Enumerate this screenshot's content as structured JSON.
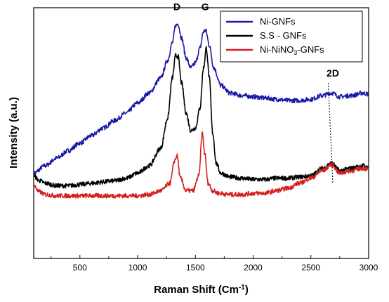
{
  "chart_data": {
    "type": "line",
    "xlabel": "Raman Shift (Cm",
    "xlabel_sup": "-1",
    "xlabel_close": ")",
    "ylabel": "Intensity (a.u.)",
    "xlim": [
      100,
      3000
    ],
    "ylim": [
      0,
      1
    ],
    "x_ticks": [
      500,
      1000,
      1500,
      2000,
      2500,
      3000
    ],
    "y_ticks_labeled": false,
    "grid": false,
    "legend_position": "top-right",
    "series": [
      {
        "name": "Ni-GNFs",
        "color": "#1a1aa6",
        "points": [
          [
            100,
            0.34
          ],
          [
            200,
            0.37
          ],
          [
            300,
            0.4
          ],
          [
            400,
            0.43
          ],
          [
            500,
            0.46
          ],
          [
            600,
            0.49
          ],
          [
            700,
            0.52
          ],
          [
            800,
            0.55
          ],
          [
            900,
            0.58
          ],
          [
            1000,
            0.62
          ],
          [
            1100,
            0.66
          ],
          [
            1200,
            0.72
          ],
          [
            1260,
            0.79
          ],
          [
            1300,
            0.86
          ],
          [
            1330,
            0.93
          ],
          [
            1350,
            0.935
          ],
          [
            1380,
            0.88
          ],
          [
            1420,
            0.8
          ],
          [
            1460,
            0.76
          ],
          [
            1500,
            0.78
          ],
          [
            1540,
            0.84
          ],
          [
            1570,
            0.905
          ],
          [
            1590,
            0.91
          ],
          [
            1620,
            0.85
          ],
          [
            1660,
            0.76
          ],
          [
            1720,
            0.69
          ],
          [
            1800,
            0.66
          ],
          [
            1900,
            0.65
          ],
          [
            2000,
            0.645
          ],
          [
            2100,
            0.64
          ],
          [
            2200,
            0.635
          ],
          [
            2300,
            0.63
          ],
          [
            2400,
            0.63
          ],
          [
            2500,
            0.635
          ],
          [
            2600,
            0.65
          ],
          [
            2680,
            0.66
          ],
          [
            2750,
            0.645
          ],
          [
            2850,
            0.65
          ],
          [
            2950,
            0.66
          ],
          [
            3000,
            0.655
          ]
        ]
      },
      {
        "name": "S.S - GNFs",
        "color": "#000000",
        "points": [
          [
            100,
            0.33
          ],
          [
            150,
            0.31
          ],
          [
            200,
            0.3
          ],
          [
            300,
            0.29
          ],
          [
            400,
            0.29
          ],
          [
            500,
            0.295
          ],
          [
            600,
            0.3
          ],
          [
            700,
            0.305
          ],
          [
            800,
            0.31
          ],
          [
            900,
            0.32
          ],
          [
            1000,
            0.34
          ],
          [
            1100,
            0.37
          ],
          [
            1200,
            0.44
          ],
          [
            1260,
            0.56
          ],
          [
            1300,
            0.72
          ],
          [
            1330,
            0.81
          ],
          [
            1350,
            0.805
          ],
          [
            1380,
            0.7
          ],
          [
            1420,
            0.58
          ],
          [
            1460,
            0.51
          ],
          [
            1500,
            0.52
          ],
          [
            1540,
            0.6
          ],
          [
            1570,
            0.76
          ],
          [
            1595,
            0.84
          ],
          [
            1620,
            0.72
          ],
          [
            1650,
            0.5
          ],
          [
            1680,
            0.38
          ],
          [
            1720,
            0.34
          ],
          [
            1800,
            0.325
          ],
          [
            1900,
            0.32
          ],
          [
            2000,
            0.315
          ],
          [
            2100,
            0.315
          ],
          [
            2200,
            0.32
          ],
          [
            2300,
            0.32
          ],
          [
            2400,
            0.325
          ],
          [
            2500,
            0.33
          ],
          [
            2600,
            0.36
          ],
          [
            2680,
            0.38
          ],
          [
            2750,
            0.35
          ],
          [
            2850,
            0.36
          ],
          [
            2950,
            0.37
          ],
          [
            3000,
            0.36
          ]
        ]
      },
      {
        "name": "Ni-NiNO3-GNFs",
        "color": "#d42020",
        "points": [
          [
            100,
            0.29
          ],
          [
            150,
            0.265
          ],
          [
            200,
            0.255
          ],
          [
            300,
            0.25
          ],
          [
            400,
            0.25
          ],
          [
            500,
            0.25
          ],
          [
            600,
            0.25
          ],
          [
            700,
            0.25
          ],
          [
            800,
            0.25
          ],
          [
            900,
            0.25
          ],
          [
            1000,
            0.25
          ],
          [
            1100,
            0.255
          ],
          [
            1200,
            0.27
          ],
          [
            1280,
            0.3
          ],
          [
            1320,
            0.39
          ],
          [
            1340,
            0.41
          ],
          [
            1370,
            0.32
          ],
          [
            1420,
            0.27
          ],
          [
            1480,
            0.27
          ],
          [
            1530,
            0.33
          ],
          [
            1560,
            0.5
          ],
          [
            1580,
            0.42
          ],
          [
            1610,
            0.3
          ],
          [
            1650,
            0.27
          ],
          [
            1700,
            0.26
          ],
          [
            1800,
            0.255
          ],
          [
            1900,
            0.255
          ],
          [
            2000,
            0.26
          ],
          [
            2100,
            0.26
          ],
          [
            2200,
            0.27
          ],
          [
            2300,
            0.28
          ],
          [
            2400,
            0.3
          ],
          [
            2500,
            0.32
          ],
          [
            2600,
            0.35
          ],
          [
            2680,
            0.375
          ],
          [
            2750,
            0.34
          ],
          [
            2850,
            0.35
          ],
          [
            2950,
            0.36
          ],
          [
            3000,
            0.355
          ]
        ]
      }
    ],
    "annotations": [
      {
        "text": "D",
        "x": 1340,
        "y": 0.99
      },
      {
        "text": "G",
        "x": 1585,
        "y": 0.99
      },
      {
        "text": "2D",
        "x": 2690,
        "y": 0.725
      }
    ],
    "dotted_line": {
      "x_top": 2650,
      "y_top": 0.7,
      "x_bottom": 2690,
      "y_bottom": 0.3
    }
  }
}
